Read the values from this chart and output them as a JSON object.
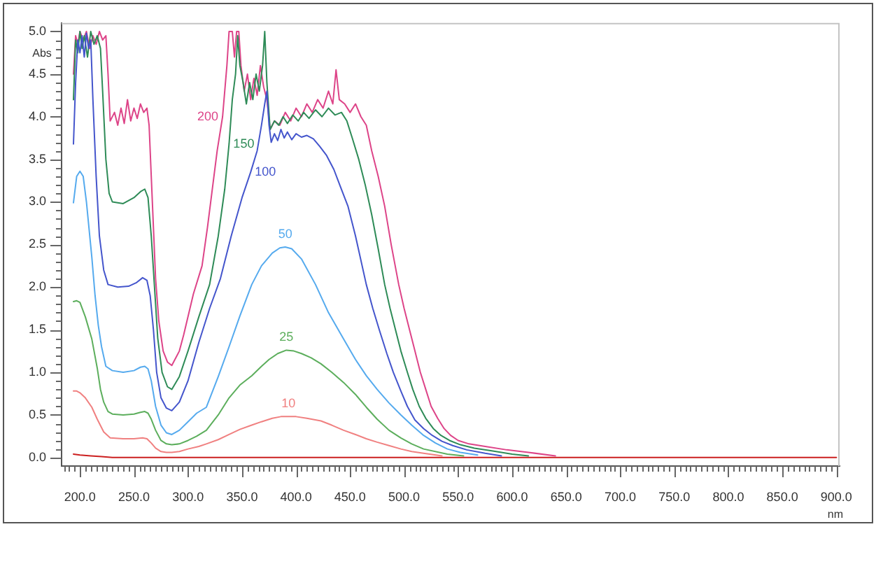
{
  "chart_data": {
    "type": "line",
    "xlabel": "nm",
    "ylabel": "Abs",
    "xlim": [
      183,
      903
    ],
    "ylim": [
      -0.1,
      5.1
    ],
    "marker": "none",
    "line_style": "solid",
    "xticks": [
      {
        "value": 185,
        "label": null
      },
      {
        "value": 190,
        "label": null
      },
      {
        "value": 195,
        "label": null
      },
      {
        "value": 200,
        "label": "200.0"
      },
      {
        "value": 205,
        "label": null
      },
      {
        "value": 210,
        "label": null
      },
      {
        "value": 215,
        "label": null
      },
      {
        "value": 220,
        "label": null
      },
      {
        "value": 225,
        "label": null
      },
      {
        "value": 230,
        "label": null
      },
      {
        "value": 235,
        "label": null
      },
      {
        "value": 240,
        "label": null
      },
      {
        "value": 245,
        "label": null
      },
      {
        "value": 250,
        "label": "250.0"
      },
      {
        "value": 255,
        "label": null
      },
      {
        "value": 260,
        "label": null
      },
      {
        "value": 265,
        "label": null
      },
      {
        "value": 270,
        "label": null
      },
      {
        "value": 275,
        "label": null
      },
      {
        "value": 280,
        "label": null
      },
      {
        "value": 285,
        "label": null
      },
      {
        "value": 290,
        "label": null
      },
      {
        "value": 295,
        "label": null
      },
      {
        "value": 300,
        "label": "300.0"
      },
      {
        "value": 305,
        "label": null
      },
      {
        "value": 310,
        "label": null
      },
      {
        "value": 315,
        "label": null
      },
      {
        "value": 320,
        "label": null
      },
      {
        "value": 325,
        "label": null
      },
      {
        "value": 330,
        "label": null
      },
      {
        "value": 335,
        "label": null
      },
      {
        "value": 340,
        "label": null
      },
      {
        "value": 345,
        "label": null
      },
      {
        "value": 350,
        "label": "350.0"
      },
      {
        "value": 355,
        "label": null
      },
      {
        "value": 360,
        "label": null
      },
      {
        "value": 365,
        "label": null
      },
      {
        "value": 370,
        "label": null
      },
      {
        "value": 375,
        "label": null
      },
      {
        "value": 380,
        "label": null
      },
      {
        "value": 385,
        "label": null
      },
      {
        "value": 390,
        "label": null
      },
      {
        "value": 395,
        "label": null
      },
      {
        "value": 400,
        "label": "400.0"
      },
      {
        "value": 405,
        "label": null
      },
      {
        "value": 410,
        "label": null
      },
      {
        "value": 415,
        "label": null
      },
      {
        "value": 420,
        "label": null
      },
      {
        "value": 425,
        "label": null
      },
      {
        "value": 430,
        "label": null
      },
      {
        "value": 435,
        "label": null
      },
      {
        "value": 440,
        "label": null
      },
      {
        "value": 445,
        "label": null
      },
      {
        "value": 450,
        "label": "450.0"
      },
      {
        "value": 455,
        "label": null
      },
      {
        "value": 460,
        "label": null
      },
      {
        "value": 465,
        "label": null
      },
      {
        "value": 470,
        "label": null
      },
      {
        "value": 475,
        "label": null
      },
      {
        "value": 480,
        "label": null
      },
      {
        "value": 485,
        "label": null
      },
      {
        "value": 490,
        "label": null
      },
      {
        "value": 495,
        "label": null
      },
      {
        "value": 500,
        "label": "500.0"
      },
      {
        "value": 505,
        "label": null
      },
      {
        "value": 510,
        "label": null
      },
      {
        "value": 515,
        "label": null
      },
      {
        "value": 520,
        "label": null
      },
      {
        "value": 525,
        "label": null
      },
      {
        "value": 530,
        "label": null
      },
      {
        "value": 535,
        "label": null
      },
      {
        "value": 540,
        "label": null
      },
      {
        "value": 545,
        "label": null
      },
      {
        "value": 550,
        "label": "550.0"
      },
      {
        "value": 555,
        "label": null
      },
      {
        "value": 560,
        "label": null
      },
      {
        "value": 565,
        "label": null
      },
      {
        "value": 570,
        "label": null
      },
      {
        "value": 575,
        "label": null
      },
      {
        "value": 580,
        "label": null
      },
      {
        "value": 585,
        "label": null
      },
      {
        "value": 590,
        "label": null
      },
      {
        "value": 595,
        "label": null
      },
      {
        "value": 600,
        "label": "600.0"
      },
      {
        "value": 605,
        "label": null
      },
      {
        "value": 610,
        "label": null
      },
      {
        "value": 615,
        "label": null
      },
      {
        "value": 620,
        "label": null
      },
      {
        "value": 625,
        "label": null
      },
      {
        "value": 630,
        "label": null
      },
      {
        "value": 635,
        "label": null
      },
      {
        "value": 640,
        "label": null
      },
      {
        "value": 645,
        "label": null
      },
      {
        "value": 650,
        "label": "650.0"
      },
      {
        "value": 655,
        "label": null
      },
      {
        "value": 660,
        "label": null
      },
      {
        "value": 665,
        "label": null
      },
      {
        "value": 670,
        "label": null
      },
      {
        "value": 675,
        "label": null
      },
      {
        "value": 680,
        "label": null
      },
      {
        "value": 685,
        "label": null
      },
      {
        "value": 690,
        "label": null
      },
      {
        "value": 695,
        "label": null
      },
      {
        "value": 700,
        "label": "700.0"
      },
      {
        "value": 705,
        "label": null
      },
      {
        "value": 710,
        "label": null
      },
      {
        "value": 715,
        "label": null
      },
      {
        "value": 720,
        "label": null
      },
      {
        "value": 725,
        "label": null
      },
      {
        "value": 730,
        "label": null
      },
      {
        "value": 735,
        "label": null
      },
      {
        "value": 740,
        "label": null
      },
      {
        "value": 745,
        "label": null
      },
      {
        "value": 750,
        "label": "750.0"
      },
      {
        "value": 755,
        "label": null
      },
      {
        "value": 760,
        "label": null
      },
      {
        "value": 765,
        "label": null
      },
      {
        "value": 770,
        "label": null
      },
      {
        "value": 775,
        "label": null
      },
      {
        "value": 780,
        "label": null
      },
      {
        "value": 785,
        "label": null
      },
      {
        "value": 790,
        "label": null
      },
      {
        "value": 795,
        "label": null
      },
      {
        "value": 800,
        "label": "800.0"
      },
      {
        "value": 805,
        "label": null
      },
      {
        "value": 810,
        "label": null
      },
      {
        "value": 815,
        "label": null
      },
      {
        "value": 820,
        "label": null
      },
      {
        "value": 825,
        "label": null
      },
      {
        "value": 830,
        "label": null
      },
      {
        "value": 835,
        "label": null
      },
      {
        "value": 840,
        "label": null
      },
      {
        "value": 845,
        "label": null
      },
      {
        "value": 850,
        "label": "850.0"
      },
      {
        "value": 855,
        "label": null
      },
      {
        "value": 860,
        "label": null
      },
      {
        "value": 865,
        "label": null
      },
      {
        "value": 870,
        "label": null
      },
      {
        "value": 875,
        "label": null
      },
      {
        "value": 880,
        "label": null
      },
      {
        "value": 885,
        "label": null
      },
      {
        "value": 890,
        "label": null
      },
      {
        "value": 895,
        "label": null
      },
      {
        "value": 900,
        "label": "900.0"
      }
    ],
    "yticks": [
      {
        "value": 0,
        "label": "0.0"
      },
      {
        "value": 0.1,
        "label": null
      },
      {
        "value": 0.2,
        "label": null
      },
      {
        "value": 0.3,
        "label": null
      },
      {
        "value": 0.4,
        "label": null
      },
      {
        "value": 0.5,
        "label": "0.5"
      },
      {
        "value": 0.6,
        "label": null
      },
      {
        "value": 0.7,
        "label": null
      },
      {
        "value": 0.8,
        "label": null
      },
      {
        "value": 0.9,
        "label": null
      },
      {
        "value": 1,
        "label": "1.0"
      },
      {
        "value": 1.1,
        "label": null
      },
      {
        "value": 1.2,
        "label": null
      },
      {
        "value": 1.3,
        "label": null
      },
      {
        "value": 1.4,
        "label": null
      },
      {
        "value": 1.5,
        "label": "1.5"
      },
      {
        "value": 1.6,
        "label": null
      },
      {
        "value": 1.7,
        "label": null
      },
      {
        "value": 1.8,
        "label": null
      },
      {
        "value": 1.9,
        "label": null
      },
      {
        "value": 2,
        "label": "2.0"
      },
      {
        "value": 2.1,
        "label": null
      },
      {
        "value": 2.2,
        "label": null
      },
      {
        "value": 2.3,
        "label": null
      },
      {
        "value": 2.4,
        "label": null
      },
      {
        "value": 2.5,
        "label": "2.5"
      },
      {
        "value": 2.6,
        "label": null
      },
      {
        "value": 2.7,
        "label": null
      },
      {
        "value": 2.8,
        "label": null
      },
      {
        "value": 2.9,
        "label": null
      },
      {
        "value": 3,
        "label": "3.0"
      },
      {
        "value": 3.1,
        "label": null
      },
      {
        "value": 3.2,
        "label": null
      },
      {
        "value": 3.3,
        "label": null
      },
      {
        "value": 3.4,
        "label": null
      },
      {
        "value": 3.5,
        "label": "3.5"
      },
      {
        "value": 3.6,
        "label": null
      },
      {
        "value": 3.7,
        "label": null
      },
      {
        "value": 3.8,
        "label": null
      },
      {
        "value": 3.9,
        "label": null
      },
      {
        "value": 4,
        "label": "4.0"
      },
      {
        "value": 4.1,
        "label": null
      },
      {
        "value": 4.2,
        "label": null
      },
      {
        "value": 4.3,
        "label": null
      },
      {
        "value": 4.4,
        "label": null
      },
      {
        "value": 4.5,
        "label": "4.5"
      },
      {
        "value": 4.6,
        "label": null
      },
      {
        "value": 4.7,
        "label": null
      },
      {
        "value": 4.8,
        "label": null
      },
      {
        "value": 4.9,
        "label": null
      },
      {
        "value": 5,
        "label": "5.0"
      }
    ],
    "series": [
      {
        "color": "#f08080",
        "x": [
          194,
          197,
          200,
          205,
          211,
          216,
          222,
          228,
          240,
          250,
          258,
          262,
          266,
          270,
          275,
          280,
          285,
          292,
          300,
          310,
          317,
          328,
          338,
          348,
          359,
          368,
          378,
          386,
          393,
          400,
          410,
          423,
          433,
          444,
          455,
          465,
          475,
          486,
          497,
          507,
          518,
          535
        ],
        "values": [
          0.78,
          0.78,
          0.76,
          0.7,
          0.59,
          0.45,
          0.3,
          0.23,
          0.22,
          0.22,
          0.23,
          0.22,
          0.17,
          0.11,
          0.07,
          0.06,
          0.06,
          0.07,
          0.1,
          0.13,
          0.16,
          0.21,
          0.27,
          0.33,
          0.38,
          0.42,
          0.46,
          0.48,
          0.48,
          0.48,
          0.46,
          0.43,
          0.38,
          0.32,
          0.27,
          0.22,
          0.18,
          0.14,
          0.1,
          0.07,
          0.05,
          0.02
        ]
      },
      {
        "color": "#5cae5c",
        "x": [
          194,
          197,
          200,
          205,
          211,
          216,
          219,
          222,
          226,
          230,
          240,
          250,
          256,
          260,
          263,
          266,
          270,
          275,
          280,
          285,
          292,
          300,
          308,
          317,
          328,
          338,
          348,
          359,
          368,
          375,
          383,
          391,
          398,
          405,
          414,
          423,
          433,
          444,
          455,
          465,
          475,
          486,
          497,
          507,
          518,
          540,
          555
        ],
        "values": [
          1.83,
          1.84,
          1.82,
          1.65,
          1.39,
          1.05,
          0.8,
          0.65,
          0.54,
          0.51,
          0.5,
          0.51,
          0.53,
          0.54,
          0.52,
          0.45,
          0.32,
          0.2,
          0.16,
          0.15,
          0.16,
          0.2,
          0.25,
          0.32,
          0.5,
          0.7,
          0.85,
          0.96,
          1.07,
          1.15,
          1.22,
          1.26,
          1.25,
          1.22,
          1.17,
          1.1,
          1.0,
          0.88,
          0.74,
          0.59,
          0.45,
          0.32,
          0.23,
          0.16,
          0.1,
          0.04,
          0.02
        ]
      },
      {
        "color": "#55aaee",
        "x": [
          194,
          197,
          200,
          203,
          206,
          211,
          214,
          217,
          220,
          224,
          230,
          240,
          250,
          256,
          260,
          263,
          266,
          270,
          275,
          280,
          285,
          292,
          300,
          308,
          317,
          328,
          338,
          348,
          359,
          368,
          378,
          385,
          390,
          396,
          405,
          418,
          430,
          444,
          455,
          465,
          475,
          486,
          497,
          507,
          518,
          529,
          540,
          552,
          568
        ],
        "values": [
          2.99,
          3.3,
          3.36,
          3.3,
          3.0,
          2.35,
          1.9,
          1.55,
          1.3,
          1.07,
          1.02,
          1.0,
          1.02,
          1.06,
          1.07,
          1.04,
          0.9,
          0.6,
          0.38,
          0.29,
          0.27,
          0.32,
          0.42,
          0.52,
          0.59,
          0.95,
          1.3,
          1.66,
          2.03,
          2.25,
          2.4,
          2.46,
          2.47,
          2.45,
          2.33,
          2.03,
          1.7,
          1.39,
          1.15,
          0.96,
          0.8,
          0.64,
          0.5,
          0.38,
          0.26,
          0.17,
          0.1,
          0.06,
          0.03
        ]
      },
      {
        "color": "#4455cc",
        "x": [
          194,
          196,
          198,
          200,
          202,
          204,
          206,
          208,
          210,
          212,
          215,
          218,
          222,
          226,
          235,
          245,
          252,
          258,
          262,
          265,
          268,
          271,
          275,
          280,
          285,
          292,
          300,
          310,
          320,
          330,
          340,
          350,
          358,
          364,
          368,
          371,
          373,
          375,
          377,
          380,
          383,
          386,
          389,
          392,
          396,
          400,
          405,
          410,
          416,
          422,
          428,
          435,
          441,
          448,
          455,
          465,
          471,
          477,
          484,
          490,
          497,
          503,
          510,
          518,
          526,
          535,
          545,
          558,
          575,
          590
        ],
        "values": [
          3.68,
          4.4,
          4.9,
          4.75,
          4.95,
          4.7,
          4.98,
          4.8,
          4.9,
          4.2,
          3.3,
          2.6,
          2.2,
          2.03,
          2.0,
          2.01,
          2.05,
          2.11,
          2.08,
          1.9,
          1.5,
          1.0,
          0.7,
          0.58,
          0.55,
          0.65,
          0.9,
          1.35,
          1.75,
          2.1,
          2.6,
          3.05,
          3.35,
          3.6,
          3.9,
          4.15,
          4.3,
          3.9,
          3.7,
          3.8,
          3.72,
          3.85,
          3.75,
          3.82,
          3.73,
          3.8,
          3.76,
          3.78,
          3.74,
          3.65,
          3.55,
          3.38,
          3.18,
          2.95,
          2.6,
          2.03,
          1.75,
          1.5,
          1.22,
          1.0,
          0.78,
          0.6,
          0.44,
          0.34,
          0.26,
          0.19,
          0.14,
          0.09,
          0.05,
          0.02
        ]
      },
      {
        "color": "#2e8b57",
        "x": [
          194,
          196,
          198,
          200,
          202,
          204,
          207,
          210,
          213,
          216,
          219,
          221,
          224,
          227,
          230,
          240,
          250,
          256,
          260,
          263,
          266,
          269,
          272,
          276,
          281,
          285,
          292,
          300,
          310,
          320,
          328,
          334,
          338,
          341,
          344,
          346,
          348,
          351,
          354,
          357,
          360,
          363,
          366,
          369,
          371,
          373,
          376,
          380,
          384,
          388,
          392,
          397,
          402,
          407,
          412,
          418,
          424,
          430,
          436,
          442,
          447,
          452,
          458,
          464,
          470,
          476,
          482,
          487,
          492,
          497,
          503,
          508,
          514,
          520,
          527,
          534,
          542,
          552,
          565,
          580,
          600,
          615
        ],
        "values": [
          4.2,
          4.9,
          4.75,
          5.0,
          4.8,
          4.95,
          4.7,
          5.0,
          4.85,
          4.95,
          4.8,
          4.3,
          3.5,
          3.1,
          3.0,
          2.98,
          3.05,
          3.12,
          3.15,
          3.05,
          2.6,
          2.0,
          1.4,
          1.0,
          0.83,
          0.8,
          0.95,
          1.25,
          1.65,
          2.03,
          2.6,
          3.15,
          3.68,
          4.2,
          4.5,
          4.95,
          4.6,
          4.4,
          4.15,
          4.4,
          4.2,
          4.5,
          4.3,
          4.6,
          5.0,
          4.4,
          3.85,
          3.95,
          3.9,
          4.0,
          3.92,
          4.02,
          3.95,
          4.05,
          3.98,
          4.08,
          4.0,
          4.1,
          4.02,
          4.05,
          3.95,
          3.75,
          3.5,
          3.2,
          2.85,
          2.45,
          2.03,
          1.75,
          1.5,
          1.25,
          1.0,
          0.8,
          0.6,
          0.46,
          0.34,
          0.26,
          0.2,
          0.15,
          0.11,
          0.08,
          0.04,
          0.02
        ]
      },
      {
        "color": "#dd4488",
        "x": [
          194,
          196,
          198,
          200,
          203,
          206,
          209,
          212,
          215,
          218,
          221,
          224,
          226,
          228,
          232,
          235,
          238,
          241,
          244,
          247,
          250,
          253,
          256,
          259,
          262,
          264,
          266,
          268,
          270,
          273,
          277,
          281,
          285,
          292,
          296,
          305,
          313,
          318,
          322,
          327,
          332,
          336,
          338,
          341,
          343,
          345,
          347,
          349,
          352,
          355,
          358,
          361,
          364,
          367,
          370,
          373,
          376,
          380,
          385,
          390,
          395,
          400,
          405,
          410,
          415,
          420,
          425,
          430,
          434,
          437,
          440,
          445,
          450,
          455,
          460,
          465,
          470,
          476,
          482,
          488,
          495,
          500,
          505,
          510,
          515,
          520,
          525,
          531,
          537,
          543,
          550,
          560,
          575,
          595,
          615,
          640
        ],
        "values": [
          4.5,
          4.95,
          4.85,
          5.0,
          4.9,
          5.0,
          4.8,
          4.95,
          4.85,
          5.0,
          4.9,
          4.95,
          4.5,
          3.95,
          4.05,
          3.9,
          4.1,
          3.92,
          4.2,
          3.95,
          4.1,
          3.98,
          4.15,
          4.05,
          4.1,
          3.9,
          3.3,
          2.7,
          2.1,
          1.6,
          1.25,
          1.12,
          1.08,
          1.25,
          1.44,
          1.92,
          2.25,
          2.7,
          3.1,
          3.6,
          4.0,
          4.6,
          5.0,
          5.0,
          4.7,
          5.0,
          5.0,
          4.6,
          4.3,
          4.5,
          4.2,
          4.45,
          4.25,
          4.6,
          4.35,
          4.2,
          3.85,
          3.95,
          3.9,
          4.05,
          3.95,
          4.1,
          4.0,
          4.15,
          4.05,
          4.2,
          4.1,
          4.3,
          4.15,
          4.55,
          4.2,
          4.15,
          4.05,
          4.15,
          4.0,
          3.9,
          3.6,
          3.3,
          2.95,
          2.5,
          2.03,
          1.75,
          1.5,
          1.25,
          1.0,
          0.8,
          0.6,
          0.46,
          0.34,
          0.26,
          0.2,
          0.16,
          0.13,
          0.09,
          0.06,
          0.02
        ]
      },
      {
        "color": "#cc2020",
        "x": [
          194,
          200,
          210,
          220,
          230,
          250,
          300,
          400,
          500,
          650,
          700,
          800,
          900
        ],
        "values": [
          0.04,
          0.03,
          0.02,
          0.01,
          0,
          0,
          0,
          0,
          0,
          0,
          0,
          0,
          0
        ]
      }
    ],
    "annotations": [
      {
        "text": "10",
        "x": 393,
        "y": 0.48
      },
      {
        "text": "25",
        "x": 391,
        "y": 1.26
      },
      {
        "text": "50",
        "x": 390,
        "y": 2.47
      },
      {
        "text": "100",
        "x": 358,
        "y": 3.35
      },
      {
        "text": "150",
        "x": 338,
        "y": 3.68
      },
      {
        "text": "200",
        "x": 332,
        "y": 4.0
      }
    ]
  }
}
